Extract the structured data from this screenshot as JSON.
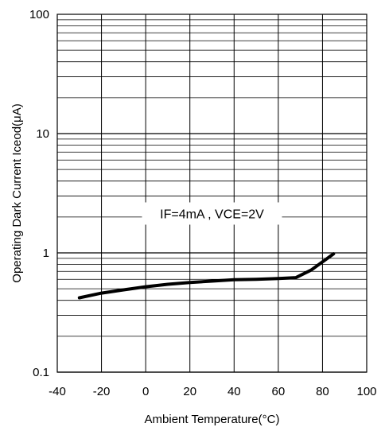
{
  "chart_data": {
    "type": "line",
    "title": "",
    "xlabel": "Ambient Temperature(°C)",
    "ylabel": "Operating Dark Current Iceod(μA)",
    "xlim": [
      -40,
      100
    ],
    "ylim": [
      0.1,
      100
    ],
    "yscale": "log",
    "grid": true,
    "x_ticks": [
      -40,
      -20,
      0,
      20,
      40,
      60,
      80,
      100
    ],
    "x_tick_labels": [
      "-40",
      "-20",
      "0",
      "20",
      "40",
      "60",
      "80",
      "100"
    ],
    "y_ticks": [
      0.1,
      1,
      10,
      100
    ],
    "y_tick_labels": [
      "0.1",
      "1",
      "10",
      "100"
    ],
    "annotation": "IF=4mA , VCE=2V",
    "series": [
      {
        "x": [
          -30,
          -20,
          -10,
          0,
          10,
          20,
          30,
          40,
          50,
          60,
          68,
          75,
          85
        ],
        "y": [
          0.42,
          0.46,
          0.49,
          0.52,
          0.545,
          0.565,
          0.58,
          0.595,
          0.6,
          0.61,
          0.62,
          0.72,
          0.98
        ]
      }
    ]
  }
}
